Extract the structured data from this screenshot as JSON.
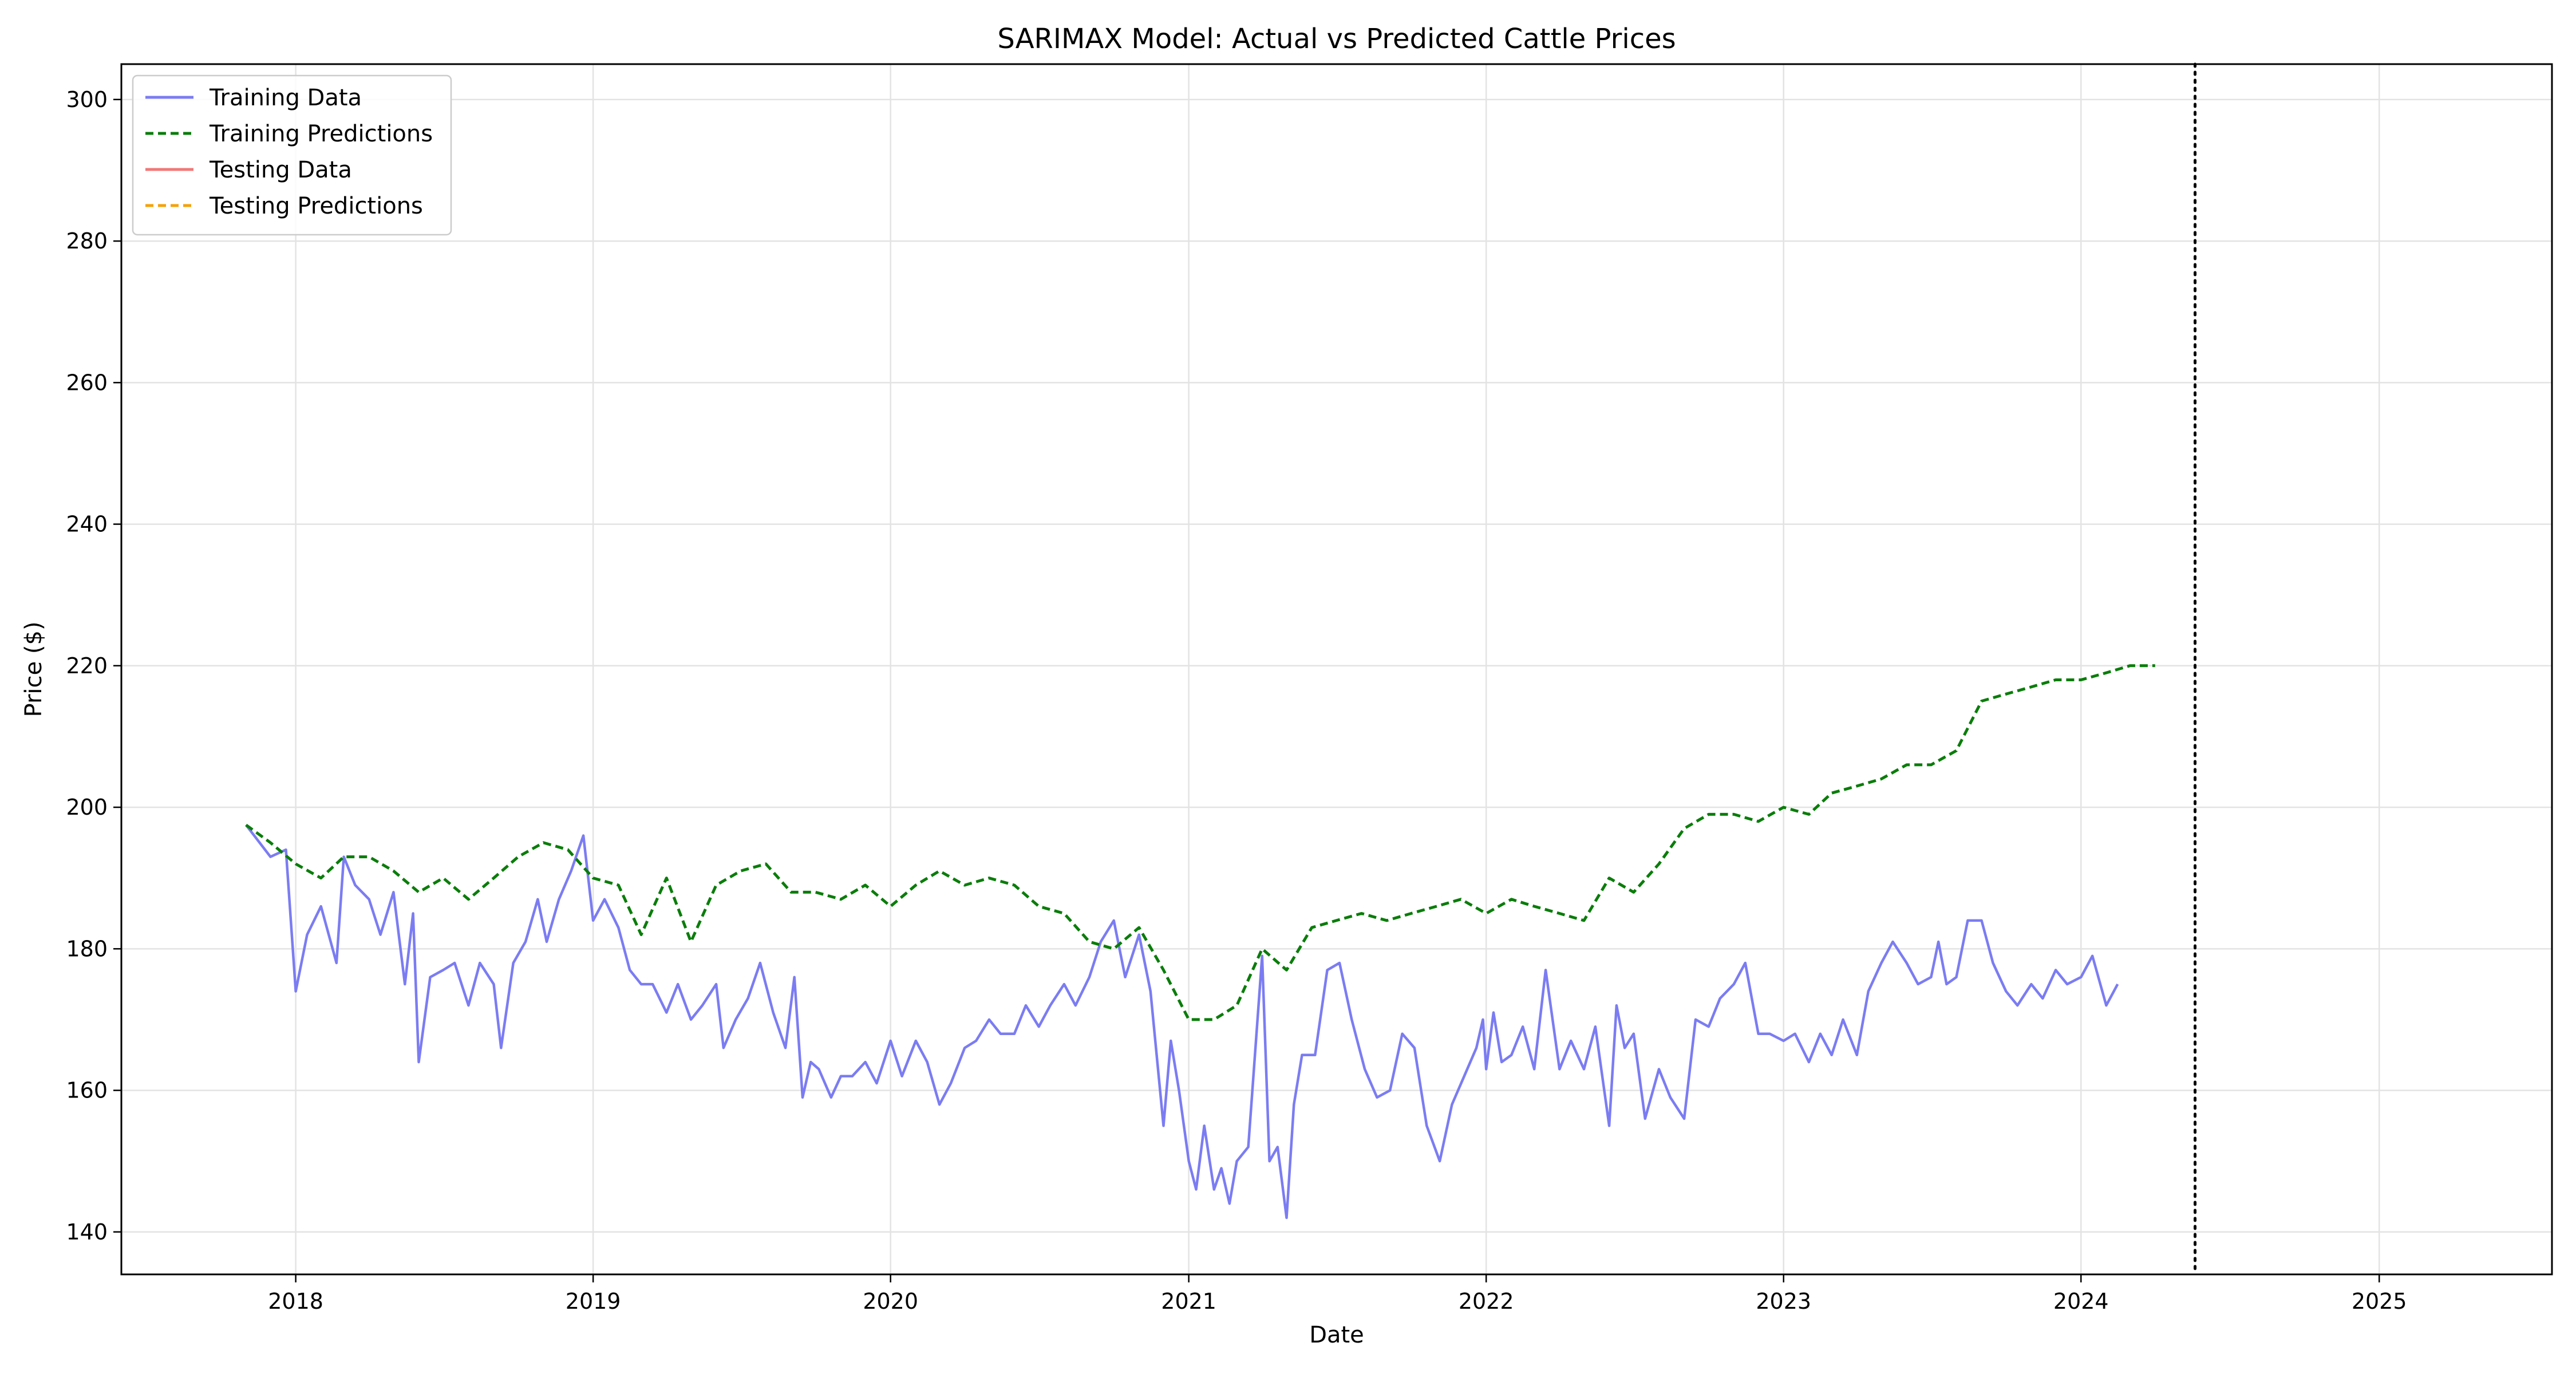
{
  "chart_data": {
    "type": "line",
    "title": "SARIMAX Model: Actual vs Predicted Cattle Prices",
    "xlabel": "Date",
    "ylabel": "Price ($)",
    "xlim": [
      "2017-06-01",
      "2025-08-01"
    ],
    "ylim": [
      134,
      305
    ],
    "x_ticks": [
      {
        "date": "2018-01-01",
        "label": "2018"
      },
      {
        "date": "2019-01-01",
        "label": "2019"
      },
      {
        "date": "2020-01-01",
        "label": "2020"
      },
      {
        "date": "2021-01-01",
        "label": "2021"
      },
      {
        "date": "2022-01-01",
        "label": "2022"
      },
      {
        "date": "2023-01-01",
        "label": "2023"
      },
      {
        "date": "2024-01-01",
        "label": "2024"
      },
      {
        "date": "2025-01-01",
        "label": "2025"
      }
    ],
    "y_ticks": [
      140,
      160,
      180,
      200,
      220,
      240,
      260,
      280,
      300
    ],
    "grid": true,
    "legend_position": "top-left",
    "split_marker": {
      "date": "2024-05-20",
      "style": "dotted",
      "color": "#000000"
    },
    "series": [
      {
        "name": "Training Data",
        "color": "#7b7cf2",
        "style": "solid",
        "points": [
          [
            "2017-11-01",
            197.5
          ],
          [
            "2017-12-01",
            193
          ],
          [
            "2017-12-20",
            194
          ],
          [
            "2018-01-01",
            174
          ],
          [
            "2018-01-15",
            182
          ],
          [
            "2018-02-01",
            186
          ],
          [
            "2018-02-20",
            178
          ],
          [
            "2018-03-01",
            193
          ],
          [
            "2018-03-15",
            189
          ],
          [
            "2018-04-01",
            187
          ],
          [
            "2018-04-15",
            182
          ],
          [
            "2018-05-01",
            188
          ],
          [
            "2018-05-15",
            175
          ],
          [
            "2018-05-25",
            185
          ],
          [
            "2018-06-01",
            164
          ],
          [
            "2018-06-15",
            176
          ],
          [
            "2018-07-01",
            177
          ],
          [
            "2018-07-15",
            178
          ],
          [
            "2018-08-01",
            172
          ],
          [
            "2018-08-15",
            178
          ],
          [
            "2018-09-01",
            175
          ],
          [
            "2018-09-10",
            166
          ],
          [
            "2018-09-25",
            178
          ],
          [
            "2018-10-10",
            181
          ],
          [
            "2018-10-25",
            187
          ],
          [
            "2018-11-05",
            181
          ],
          [
            "2018-11-20",
            187
          ],
          [
            "2018-12-05",
            191
          ],
          [
            "2018-12-20",
            196
          ],
          [
            "2019-01-01",
            184
          ],
          [
            "2019-01-15",
            187
          ],
          [
            "2019-02-01",
            183
          ],
          [
            "2019-02-15",
            177
          ],
          [
            "2019-03-01",
            175
          ],
          [
            "2019-03-15",
            175
          ],
          [
            "2019-04-01",
            171
          ],
          [
            "2019-04-15",
            175
          ],
          [
            "2019-05-01",
            170
          ],
          [
            "2019-05-15",
            172
          ],
          [
            "2019-06-01",
            175
          ],
          [
            "2019-06-10",
            166
          ],
          [
            "2019-06-25",
            170
          ],
          [
            "2019-07-10",
            173
          ],
          [
            "2019-07-25",
            178
          ],
          [
            "2019-08-10",
            171
          ],
          [
            "2019-08-25",
            166
          ],
          [
            "2019-09-05",
            176
          ],
          [
            "2019-09-15",
            159
          ],
          [
            "2019-09-25",
            164
          ],
          [
            "2019-10-05",
            163
          ],
          [
            "2019-10-20",
            159
          ],
          [
            "2019-11-01",
            162
          ],
          [
            "2019-11-15",
            162
          ],
          [
            "2019-12-01",
            164
          ],
          [
            "2019-12-15",
            161
          ],
          [
            "2020-01-01",
            167
          ],
          [
            "2020-01-15",
            162
          ],
          [
            "2020-02-01",
            167
          ],
          [
            "2020-02-15",
            164
          ],
          [
            "2020-03-01",
            158
          ],
          [
            "2020-03-15",
            161
          ],
          [
            "2020-04-01",
            166
          ],
          [
            "2020-04-15",
            167
          ],
          [
            "2020-05-01",
            170
          ],
          [
            "2020-05-15",
            168
          ],
          [
            "2020-06-01",
            168
          ],
          [
            "2020-06-15",
            172
          ],
          [
            "2020-07-01",
            169
          ],
          [
            "2020-07-15",
            172
          ],
          [
            "2020-08-01",
            175
          ],
          [
            "2020-08-15",
            172
          ],
          [
            "2020-09-01",
            176
          ],
          [
            "2020-09-15",
            181
          ],
          [
            "2020-10-01",
            184
          ],
          [
            "2020-10-15",
            176
          ],
          [
            "2020-11-01",
            182
          ],
          [
            "2020-11-15",
            174
          ],
          [
            "2020-12-01",
            155
          ],
          [
            "2020-12-10",
            167
          ],
          [
            "2020-12-20",
            160
          ],
          [
            "2021-01-01",
            150
          ],
          [
            "2021-01-10",
            146
          ],
          [
            "2021-01-20",
            155
          ],
          [
            "2021-02-01",
            146
          ],
          [
            "2021-02-10",
            149
          ],
          [
            "2021-02-20",
            144
          ],
          [
            "2021-03-01",
            150
          ],
          [
            "2021-03-15",
            152
          ],
          [
            "2021-04-01",
            179
          ],
          [
            "2021-04-10",
            150
          ],
          [
            "2021-04-20",
            152
          ],
          [
            "2021-05-01",
            142
          ],
          [
            "2021-05-10",
            158
          ],
          [
            "2021-05-20",
            165
          ],
          [
            "2021-06-05",
            165
          ],
          [
            "2021-06-20",
            177
          ],
          [
            "2021-07-05",
            178
          ],
          [
            "2021-07-20",
            170
          ],
          [
            "2021-08-05",
            163
          ],
          [
            "2021-08-20",
            159
          ],
          [
            "2021-09-05",
            160
          ],
          [
            "2021-09-20",
            168
          ],
          [
            "2021-10-05",
            166
          ],
          [
            "2021-10-20",
            155
          ],
          [
            "2021-11-05",
            150
          ],
          [
            "2021-11-20",
            158
          ],
          [
            "2021-12-05",
            162
          ],
          [
            "2021-12-20",
            166
          ],
          [
            "2021-12-28",
            170
          ],
          [
            "2022-01-01",
            163
          ],
          [
            "2022-01-10",
            171
          ],
          [
            "2022-01-20",
            164
          ],
          [
            "2022-02-01",
            165
          ],
          [
            "2022-02-15",
            169
          ],
          [
            "2022-03-01",
            163
          ],
          [
            "2022-03-15",
            177
          ],
          [
            "2022-04-01",
            163
          ],
          [
            "2022-04-15",
            167
          ],
          [
            "2022-05-01",
            163
          ],
          [
            "2022-05-15",
            169
          ],
          [
            "2022-06-01",
            155
          ],
          [
            "2022-06-10",
            172
          ],
          [
            "2022-06-20",
            166
          ],
          [
            "2022-07-01",
            168
          ],
          [
            "2022-07-15",
            156
          ],
          [
            "2022-08-01",
            163
          ],
          [
            "2022-08-15",
            159
          ],
          [
            "2022-09-01",
            156
          ],
          [
            "2022-09-15",
            170
          ],
          [
            "2022-10-01",
            169
          ],
          [
            "2022-10-15",
            173
          ],
          [
            "2022-11-01",
            175
          ],
          [
            "2022-11-15",
            178
          ],
          [
            "2022-12-01",
            168
          ],
          [
            "2022-12-15",
            168
          ],
          [
            "2023-01-01",
            167
          ],
          [
            "2023-01-15",
            168
          ],
          [
            "2023-02-01",
            164
          ],
          [
            "2023-02-15",
            168
          ],
          [
            "2023-03-01",
            165
          ],
          [
            "2023-03-15",
            170
          ],
          [
            "2023-04-01",
            165
          ],
          [
            "2023-04-15",
            174
          ],
          [
            "2023-05-01",
            178
          ],
          [
            "2023-05-15",
            181
          ],
          [
            "2023-06-01",
            178
          ],
          [
            "2023-06-15",
            175
          ],
          [
            "2023-07-01",
            176
          ],
          [
            "2023-07-10",
            181
          ],
          [
            "2023-07-20",
            175
          ],
          [
            "2023-08-01",
            176
          ],
          [
            "2023-08-15",
            184
          ],
          [
            "2023-09-01",
            184
          ],
          [
            "2023-09-15",
            178
          ],
          [
            "2023-10-01",
            174
          ],
          [
            "2023-10-15",
            172
          ],
          [
            "2023-11-01",
            175
          ],
          [
            "2023-11-15",
            173
          ],
          [
            "2023-12-01",
            177
          ],
          [
            "2023-12-15",
            175
          ],
          [
            "2024-01-01",
            176
          ],
          [
            "2024-01-15",
            179
          ],
          [
            "2024-02-01",
            172
          ],
          [
            "2024-02-15",
            175
          ]
        ]
      },
      {
        "name": "Training Predictions",
        "color": "#0a7d0a",
        "style": "dashed",
        "points": [
          [
            "2017-11-01",
            197.5
          ],
          [
            "2017-12-01",
            195
          ],
          [
            "2018-01-01",
            192
          ],
          [
            "2018-02-01",
            190
          ],
          [
            "2018-03-01",
            193
          ],
          [
            "2018-04-01",
            193
          ],
          [
            "2018-05-01",
            191
          ],
          [
            "2018-06-01",
            188
          ],
          [
            "2018-07-01",
            190
          ],
          [
            "2018-08-01",
            187
          ],
          [
            "2018-09-01",
            190
          ],
          [
            "2018-10-01",
            193
          ],
          [
            "2018-11-01",
            195
          ],
          [
            "2018-12-01",
            194
          ],
          [
            "2019-01-01",
            190
          ],
          [
            "2019-02-01",
            189
          ],
          [
            "2019-03-01",
            182
          ],
          [
            "2019-04-01",
            190
          ],
          [
            "2019-05-01",
            181
          ],
          [
            "2019-06-01",
            189
          ],
          [
            "2019-07-01",
            191
          ],
          [
            "2019-08-01",
            192
          ],
          [
            "2019-09-01",
            188
          ],
          [
            "2019-10-01",
            188
          ],
          [
            "2019-11-01",
            187
          ],
          [
            "2019-12-01",
            189
          ],
          [
            "2020-01-01",
            186
          ],
          [
            "2020-02-01",
            189
          ],
          [
            "2020-03-01",
            191
          ],
          [
            "2020-04-01",
            189
          ],
          [
            "2020-05-01",
            190
          ],
          [
            "2020-06-01",
            189
          ],
          [
            "2020-07-01",
            186
          ],
          [
            "2020-08-01",
            185
          ],
          [
            "2020-09-01",
            181
          ],
          [
            "2020-10-01",
            180
          ],
          [
            "2020-11-01",
            183
          ],
          [
            "2020-12-01",
            177
          ],
          [
            "2021-01-01",
            170
          ],
          [
            "2021-02-01",
            170
          ],
          [
            "2021-03-01",
            172
          ],
          [
            "2021-04-01",
            180
          ],
          [
            "2021-05-01",
            177
          ],
          [
            "2021-06-01",
            183
          ],
          [
            "2021-07-01",
            184
          ],
          [
            "2021-08-01",
            185
          ],
          [
            "2021-09-01",
            184
          ],
          [
            "2021-10-01",
            185
          ],
          [
            "2021-11-01",
            186
          ],
          [
            "2021-12-01",
            187
          ],
          [
            "2022-01-01",
            185
          ],
          [
            "2022-02-01",
            187
          ],
          [
            "2022-03-01",
            186
          ],
          [
            "2022-04-01",
            185
          ],
          [
            "2022-05-01",
            184
          ],
          [
            "2022-06-01",
            190
          ],
          [
            "2022-07-01",
            188
          ],
          [
            "2022-08-01",
            192
          ],
          [
            "2022-09-01",
            197
          ],
          [
            "2022-10-01",
            199
          ],
          [
            "2022-11-01",
            199
          ],
          [
            "2022-12-01",
            198
          ],
          [
            "2023-01-01",
            200
          ],
          [
            "2023-02-01",
            199
          ],
          [
            "2023-03-01",
            202
          ],
          [
            "2023-04-01",
            203
          ],
          [
            "2023-05-01",
            204
          ],
          [
            "2023-06-01",
            206
          ],
          [
            "2023-07-01",
            206
          ],
          [
            "2023-08-01",
            208
          ],
          [
            "2023-09-01",
            215
          ],
          [
            "2023-10-01",
            216
          ],
          [
            "2023-11-01",
            217
          ],
          [
            "2023-12-01",
            218
          ],
          [
            "2024-01-01",
            218
          ],
          [
            "2024-02-01",
            219
          ],
          [
            "2024-03-01",
            220
          ],
          [
            "2024-04-01",
            220
          ]
        ]
      },
      {
        "name": "Testing Data",
        "color": "#f07878",
        "style": "solid",
        "points": []
      },
      {
        "name": "Testing Predictions",
        "color": "#f5a20a",
        "style": "dashed",
        "points": []
      }
    ]
  }
}
